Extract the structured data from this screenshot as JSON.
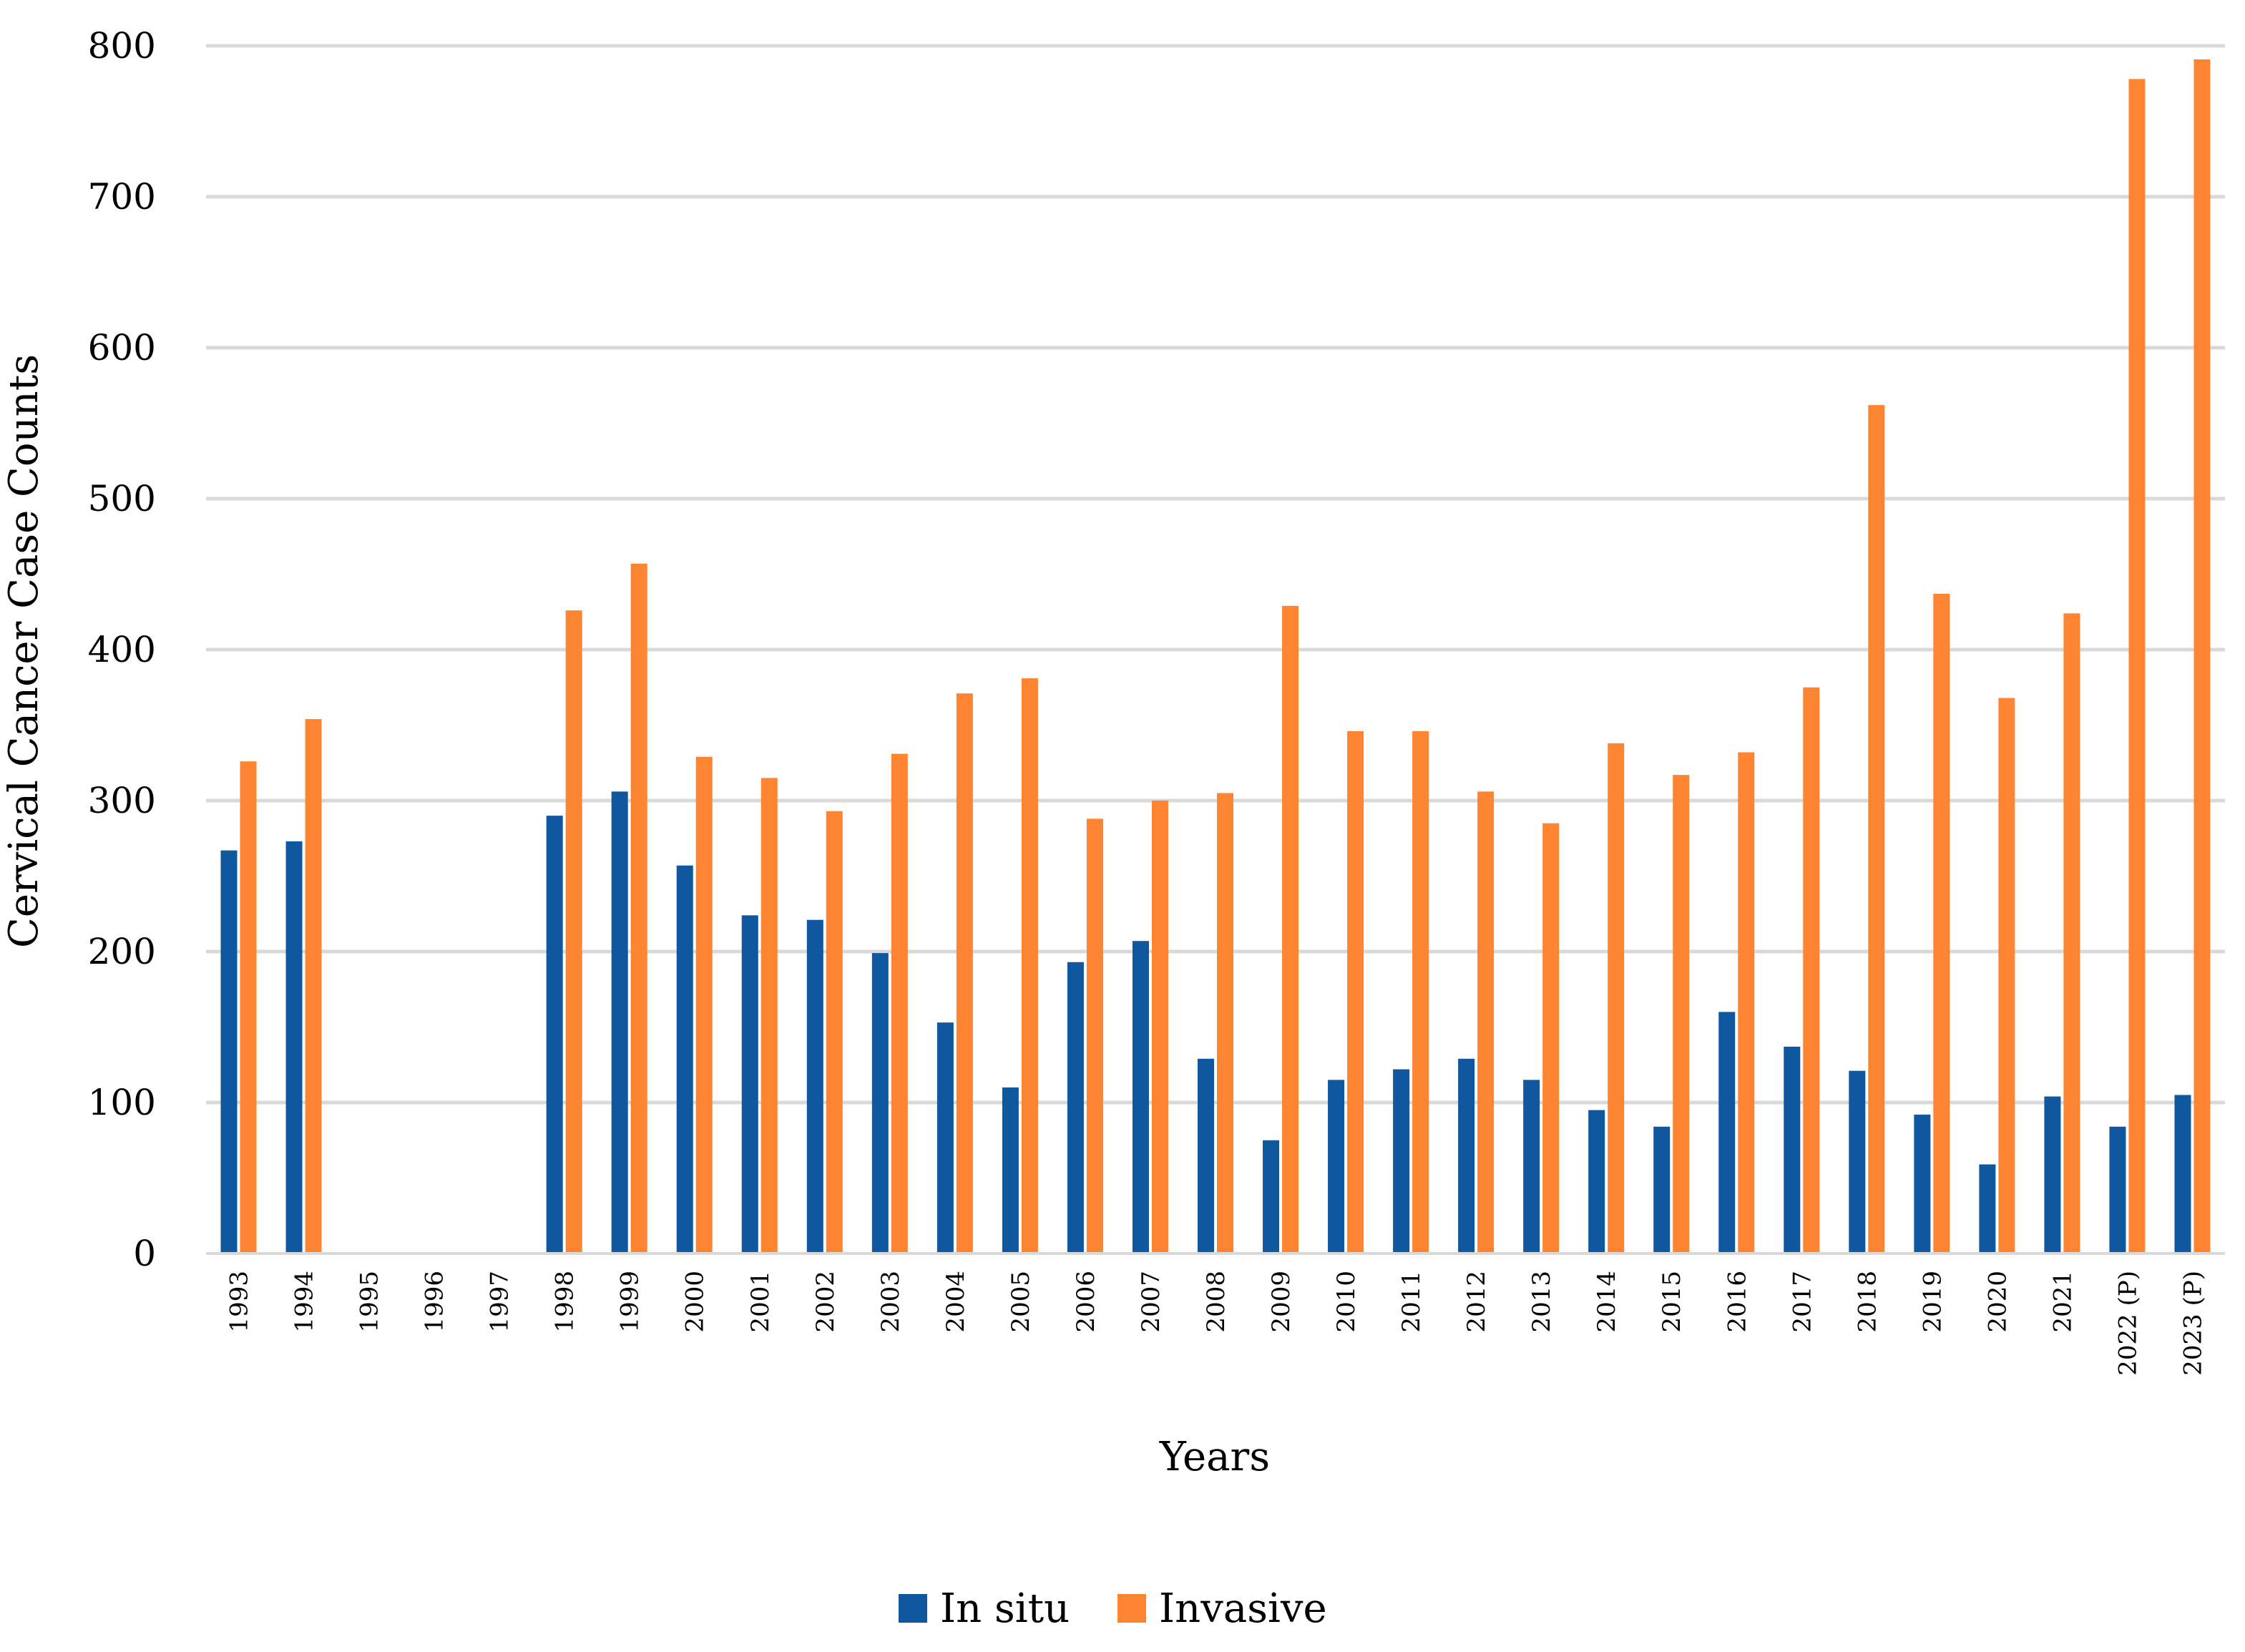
{
  "chart_data": {
    "type": "bar",
    "title": "",
    "xlabel": "Years",
    "ylabel": "Cervical Cancer Case Counts",
    "ylim": [
      0,
      800
    ],
    "yticks": [
      0,
      100,
      200,
      300,
      400,
      500,
      600,
      700,
      800
    ],
    "grid": true,
    "legend_position": "bottom",
    "categories": [
      "1993",
      "1994",
      "1995",
      "1996",
      "1997",
      "1998",
      "1999",
      "2000",
      "2001",
      "2002",
      "2003",
      "2004",
      "2005",
      "2006",
      "2007",
      "2008",
      "2009",
      "2010",
      "2011",
      "2012",
      "2013",
      "2014",
      "2015",
      "2016",
      "2017",
      "2018",
      "2019",
      "2020",
      "2021",
      "2022 (P)",
      "2023 (P)"
    ],
    "series": [
      {
        "name": "In situ",
        "color": "#0f58a0",
        "values": [
          267,
          273,
          null,
          null,
          null,
          290,
          306,
          257,
          224,
          221,
          199,
          153,
          110,
          193,
          207,
          129,
          75,
          115,
          122,
          129,
          115,
          95,
          84,
          160,
          137,
          121,
          92,
          59,
          104,
          84,
          105
        ]
      },
      {
        "name": "Invasive",
        "color": "#fd8532",
        "values": [
          326,
          354,
          null,
          null,
          null,
          426,
          457,
          329,
          315,
          293,
          331,
          371,
          381,
          288,
          300,
          305,
          429,
          346,
          346,
          306,
          285,
          338,
          317,
          332,
          375,
          562,
          437,
          368,
          424,
          778,
          791
        ]
      }
    ]
  }
}
